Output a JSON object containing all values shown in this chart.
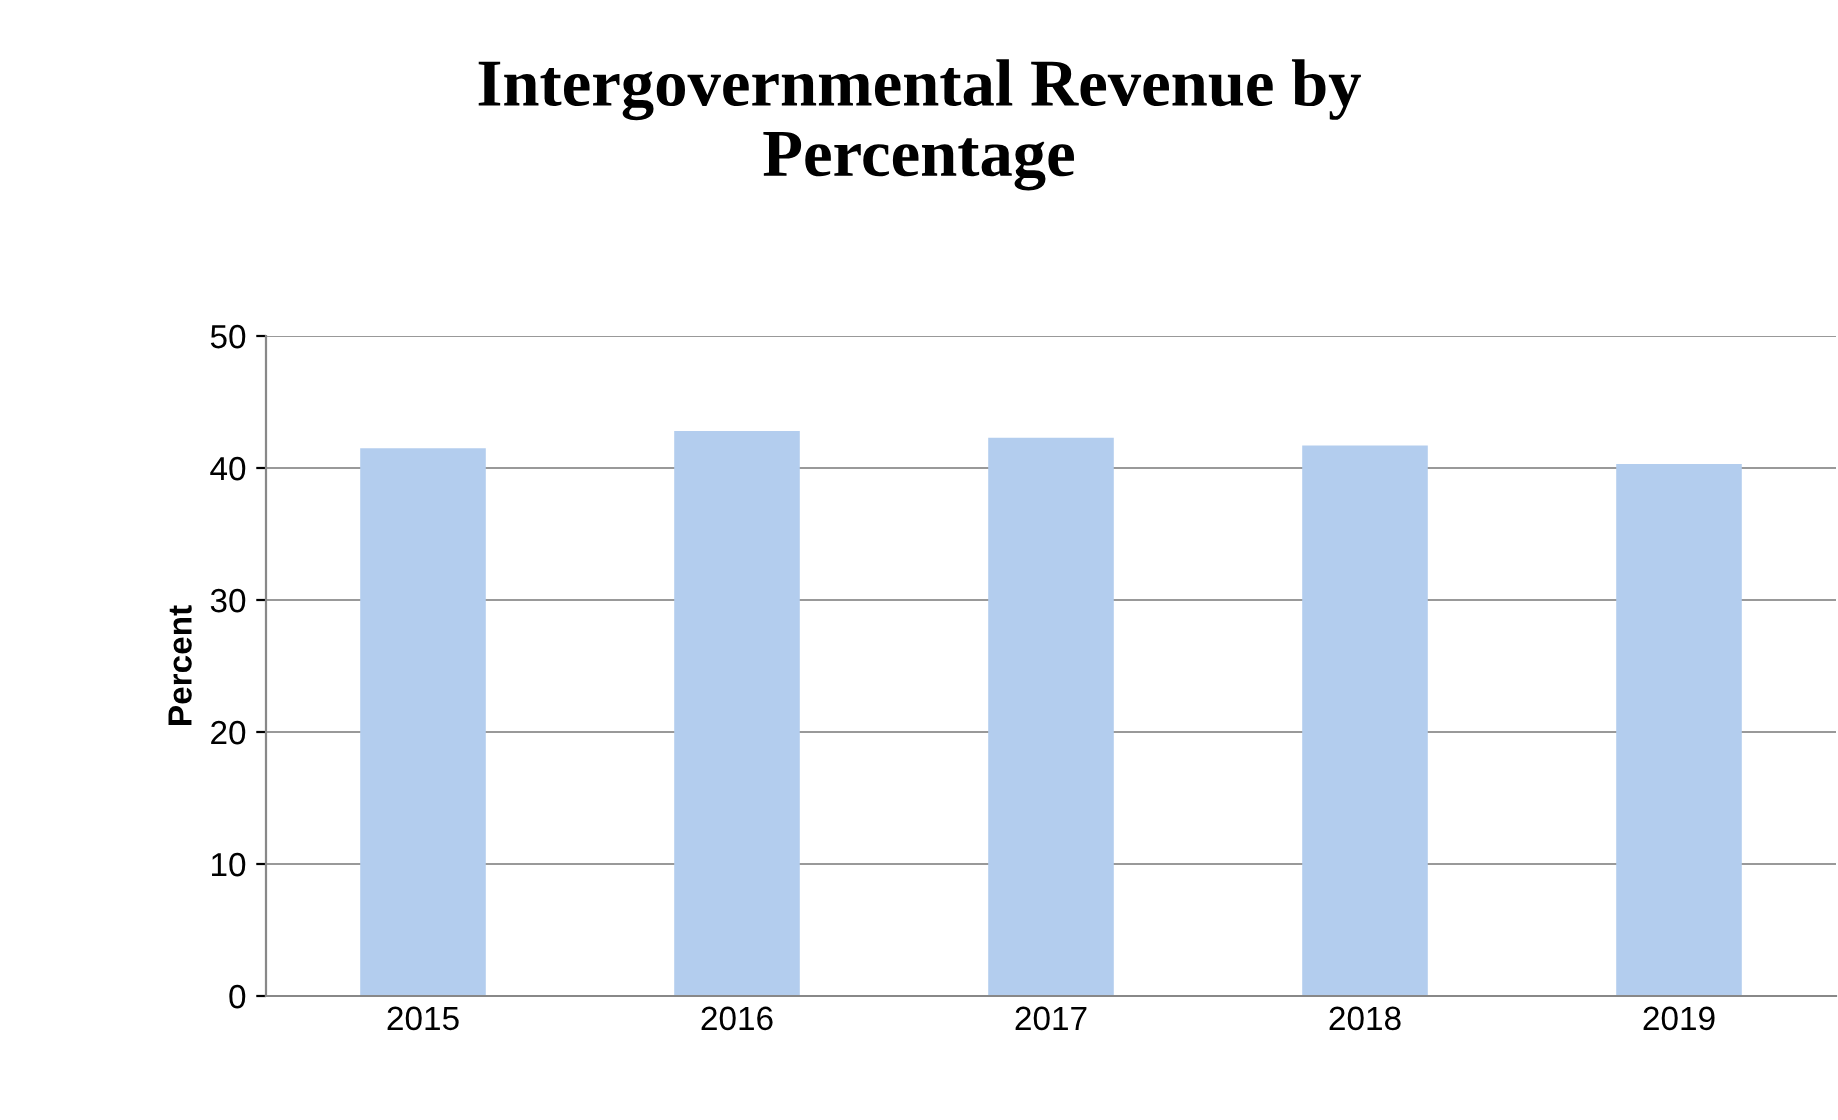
{
  "chart_data": {
    "type": "bar",
    "title": "Intergovernmental Revenue by\nPercentage",
    "ylabel": "Percent",
    "categories": [
      "2015",
      "2016",
      "2017",
      "2018",
      "2019"
    ],
    "values": [
      41.5,
      42.8,
      42.3,
      41.7,
      40.3
    ],
    "color": "#b3cdee",
    "ylim": [
      0,
      50
    ],
    "yticks": [
      0,
      10,
      20,
      30,
      40,
      50
    ],
    "grid": "y"
  }
}
